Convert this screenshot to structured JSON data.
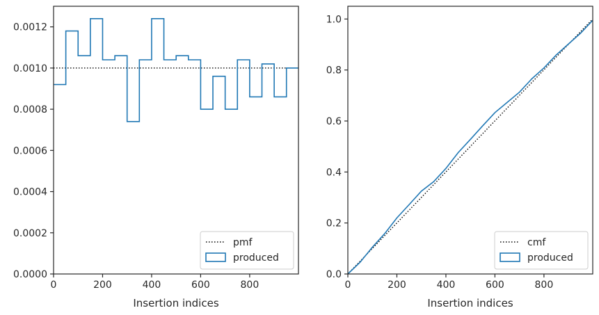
{
  "chart_data": [
    {
      "type": "step",
      "xlabel": "Insertion indices",
      "ylabel": "",
      "xlim": [
        0,
        999
      ],
      "ylim": [
        0,
        0.0013
      ],
      "xticks": [
        0,
        200,
        400,
        600,
        800
      ],
      "xtick_labels": [
        "0",
        "200",
        "400",
        "600",
        "800"
      ],
      "yticks": [
        0,
        0.0002,
        0.0004,
        0.0006,
        0.0008,
        0.001,
        0.0012
      ],
      "ytick_labels": [
        "0.0000",
        "0.0002",
        "0.0004",
        "0.0006",
        "0.0008",
        "0.0010",
        "0.0012"
      ],
      "legend_position": "lower-right",
      "series": [
        {
          "name": "pmf",
          "style": "dotted",
          "color": "#000000",
          "x": [
            0,
            999
          ],
          "values": [
            0.001,
            0.001
          ]
        },
        {
          "name": "produced",
          "style": "step",
          "color": "#1f77b4",
          "bin_edges": [
            0,
            50,
            100,
            150,
            200,
            250,
            300,
            350,
            400,
            450,
            500,
            550,
            600,
            650,
            700,
            750,
            800,
            850,
            900,
            950,
            999
          ],
          "values": [
            0.00092,
            0.00118,
            0.00106,
            0.00124,
            0.00104,
            0.00106,
            0.00074,
            0.00104,
            0.00124,
            0.00104,
            0.00106,
            0.00104,
            0.0008,
            0.00096,
            0.0008,
            0.00104,
            0.00086,
            0.00102,
            0.00086,
            0.001
          ]
        }
      ]
    },
    {
      "type": "line",
      "xlabel": "Insertion indices",
      "ylabel": "",
      "xlim": [
        0,
        999
      ],
      "ylim": [
        0,
        1.05
      ],
      "xticks": [
        0,
        200,
        400,
        600,
        800
      ],
      "xtick_labels": [
        "0",
        "200",
        "400",
        "600",
        "800"
      ],
      "yticks": [
        0,
        0.2,
        0.4,
        0.6,
        0.8,
        1.0
      ],
      "ytick_labels": [
        "0.0",
        "0.2",
        "0.4",
        "0.6",
        "0.8",
        "1.0"
      ],
      "legend_position": "lower-right",
      "series": [
        {
          "name": "cmf",
          "style": "dotted",
          "color": "#000000",
          "x": [
            0,
            999
          ],
          "values": [
            0,
            1.0
          ]
        },
        {
          "name": "produced",
          "style": "line",
          "color": "#1f77b4",
          "x": [
            0,
            50,
            100,
            150,
            200,
            250,
            300,
            350,
            400,
            450,
            500,
            550,
            600,
            650,
            700,
            750,
            800,
            850,
            900,
            950,
            999
          ],
          "values": [
            0,
            0.046,
            0.105,
            0.158,
            0.22,
            0.272,
            0.325,
            0.362,
            0.414,
            0.476,
            0.528,
            0.581,
            0.633,
            0.673,
            0.713,
            0.765,
            0.808,
            0.859,
            0.902,
            0.945,
            0.995
          ]
        }
      ]
    }
  ]
}
